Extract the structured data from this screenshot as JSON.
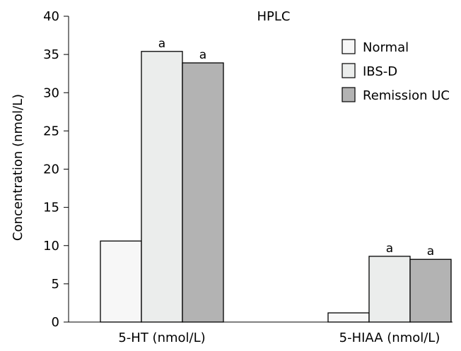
{
  "chart_data": {
    "type": "bar",
    "title": "HPLC",
    "xlabel": "",
    "ylabel": "Concentration (nmol/L)",
    "ylim": [
      0,
      40
    ],
    "yticks": [
      0,
      5,
      10,
      15,
      20,
      25,
      30,
      35,
      40
    ],
    "categories": [
      "5-HT (nmol/L)",
      "5-HIAA (nmol/L)"
    ],
    "series": [
      {
        "name": "Normal",
        "color": "#f7f7f7",
        "values": [
          10.6,
          1.2
        ],
        "annotations": [
          "",
          ""
        ]
      },
      {
        "name": "IBS-D",
        "color": "#ebedec",
        "values": [
          35.4,
          8.6
        ],
        "annotations": [
          "a",
          "a"
        ]
      },
      {
        "name": "Remission UC",
        "color": "#b3b3b3",
        "values": [
          33.9,
          8.2
        ],
        "annotations": [
          "a",
          "a"
        ]
      }
    ],
    "legend_position": "top-right",
    "grid": false
  }
}
